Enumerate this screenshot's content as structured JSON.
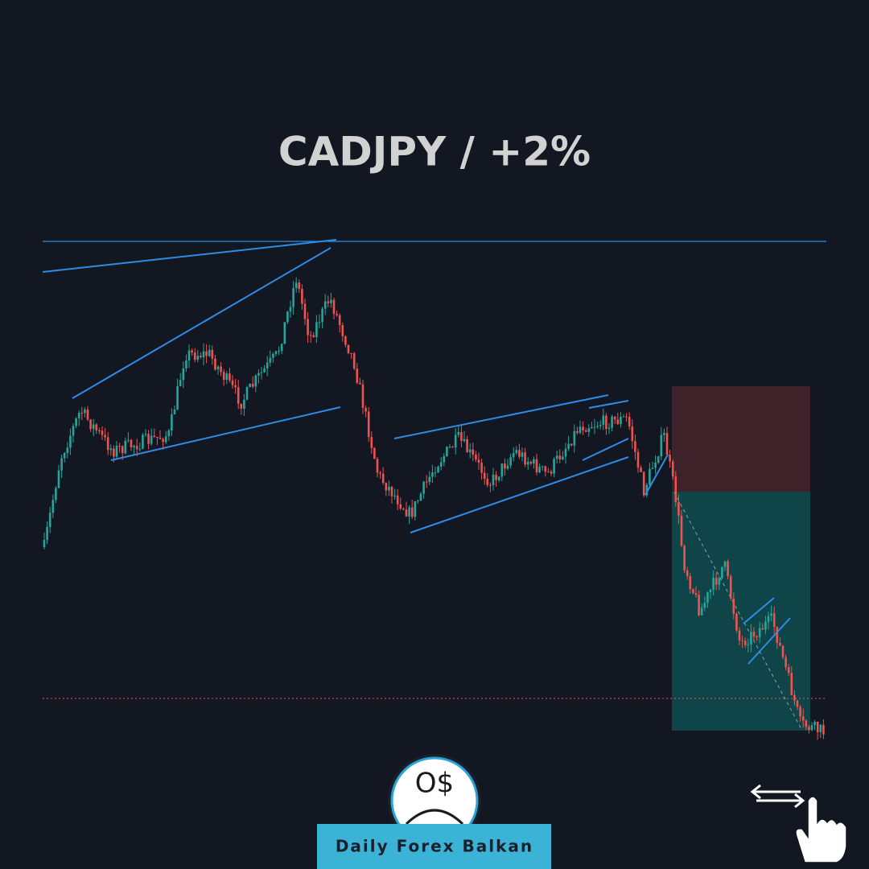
{
  "title": "CADJPY / +2%",
  "logo_text": "O$",
  "brand": "Daily Forex Balkan"
}
